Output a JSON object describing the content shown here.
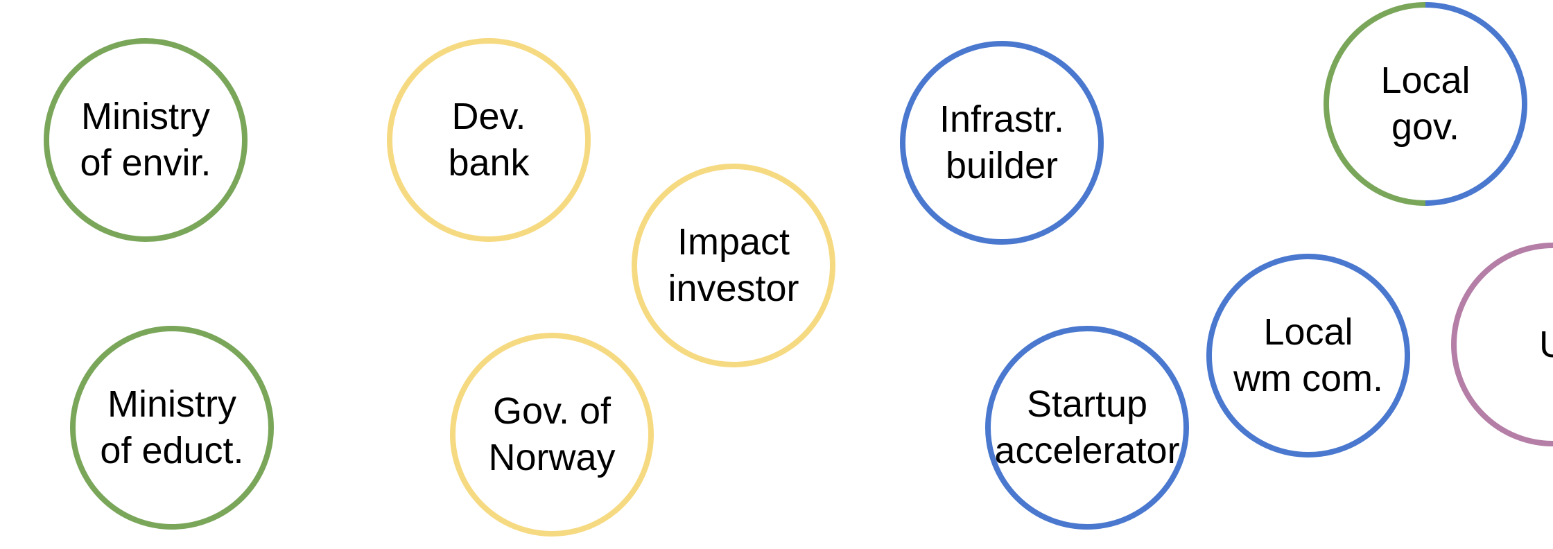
{
  "colors": {
    "green": "#7aa65a",
    "yellow": "#f6da82",
    "blue": "#4a78cf",
    "purple": "#b47ea6"
  },
  "nodes": {
    "ministry_envir": {
      "line1": "Ministry",
      "line2": "of envir.",
      "color": "green"
    },
    "dev_bank": {
      "line1": "Dev.",
      "line2": "bank",
      "color": "yellow"
    },
    "impact_investor": {
      "line1": "Impact",
      "line2": "investor",
      "color": "yellow"
    },
    "infrastr_builder": {
      "line1": "Infrastr.",
      "line2": "builder",
      "color": "blue"
    },
    "local_gov": {
      "line1": "Local",
      "line2": "gov.",
      "color": "green+blue"
    },
    "ministry_educt": {
      "line1": "Ministry",
      "line2": "of educt.",
      "color": "green"
    },
    "gov_norway": {
      "line1": "Gov. of",
      "line2": "Norway",
      "color": "yellow"
    },
    "startup_accelerator": {
      "line1": "Startup",
      "line2": "accelerator",
      "color": "blue"
    },
    "local_wm_com": {
      "line1": "Local",
      "line2": "wm com.",
      "color": "blue"
    },
    "uni": {
      "line1": "Uni.",
      "color": "purple"
    }
  }
}
